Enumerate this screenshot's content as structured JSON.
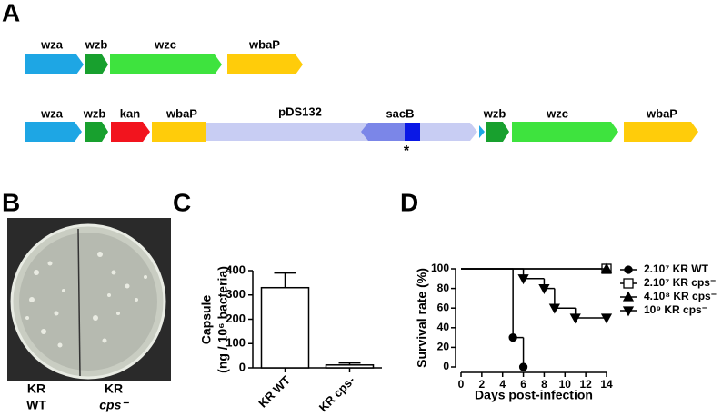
{
  "panel_a": {
    "letter": "A",
    "row1": [
      "wza",
      "wzb",
      "wzc",
      "wbaP"
    ],
    "row2": [
      "wza",
      "wzb",
      "kan",
      "wbaP",
      "pDS132",
      "sacB",
      "wzb",
      "wzc",
      "wbaP"
    ],
    "marker": "*"
  },
  "panel_b": {
    "letter": "B",
    "labels": [
      [
        "KR",
        "WT"
      ],
      [
        "KR",
        "cps⁻"
      ]
    ]
  },
  "chart_data": [
    {
      "type": "bar",
      "letter": "C",
      "y_label": [
        "Capsule",
        "(ng / 10⁶ bacteria)"
      ],
      "categories": [
        "KR WT",
        "KR cps-"
      ],
      "values": [
        330,
        12
      ],
      "errors": [
        60,
        8
      ],
      "color": "#ffffff",
      "ylim": [
        0,
        400
      ],
      "yticks": [
        0,
        100,
        200,
        300,
        400
      ]
    },
    {
      "type": "step",
      "letter": "D",
      "y_label": "Survival rate (%)",
      "x_label": "Days post-infection",
      "xlim": [
        0,
        14
      ],
      "xticks": [
        0,
        2,
        4,
        6,
        8,
        10,
        12,
        14
      ],
      "ylim": [
        0,
        100
      ],
      "yticks": [
        0,
        20,
        40,
        60,
        80,
        100
      ],
      "series": [
        {
          "name": "2.10⁷ KR WT",
          "color": "#000000",
          "marker": "circle",
          "x": [
            0,
            5,
            6
          ],
          "values": [
            100,
            30,
            0
          ]
        },
        {
          "name": "2.10⁷ KR cps⁻",
          "color": "#000000",
          "marker": "open-square",
          "x": [
            0,
            14
          ],
          "values": [
            100,
            100
          ]
        },
        {
          "name": "4.10⁸ KR cps⁻",
          "color": "#000000",
          "marker": "triangle-up",
          "x": [
            0,
            14
          ],
          "values": [
            100,
            100
          ]
        },
        {
          "name": "10⁹ KR cps⁻",
          "color": "#000000",
          "marker": "triangle-down",
          "x": [
            0,
            6,
            8,
            9,
            11,
            14
          ],
          "values": [
            100,
            90,
            80,
            60,
            50,
            50
          ]
        }
      ]
    }
  ]
}
